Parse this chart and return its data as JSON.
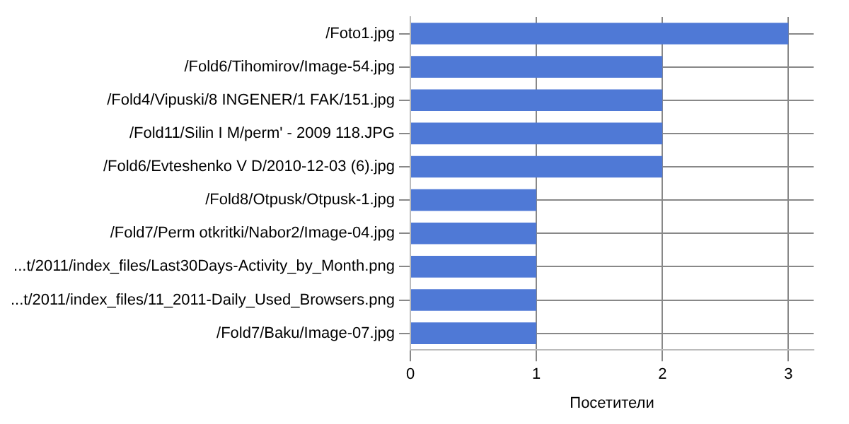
{
  "chart_data": {
    "type": "bar",
    "orientation": "horizontal",
    "xlabel": "Посетители",
    "categories": [
      "/Foto1.jpg",
      "/Fold6/Tihomirov/Image-54.jpg",
      "/Fold4/Vipuski/8 INGENER/1 FAK/151.jpg",
      "/Fold11/Silin I M/perm' - 2009 118.JPG",
      "/Fold6/Evteshenko V D/2010-12-03 (6).jpg",
      "/Fold8/Otpusk/Otpusk-1.jpg",
      "/Fold7/Perm otkritki/Nabor2/Image-04.jpg",
      "...t/2011/index_files/Last30Days-Activity_by_Month.png",
      "...t/2011/index_files/11_2011-Daily_Used_Browsers.png",
      "/Fold7/Baku/Image-07.jpg"
    ],
    "values": [
      3,
      2,
      2,
      2,
      2,
      1,
      1,
      1,
      1,
      1
    ],
    "color": "#4f79d6",
    "xlim": [
      0,
      3.2
    ],
    "xticks": [
      0,
      1,
      2,
      3
    ],
    "grid": true,
    "legend": false
  }
}
